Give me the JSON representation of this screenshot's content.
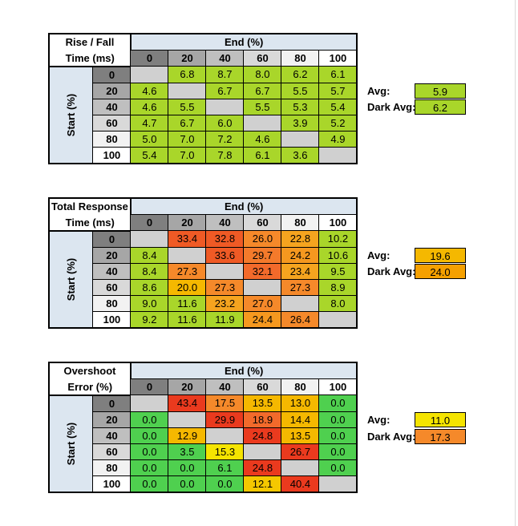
{
  "col_headers": [
    "0",
    "20",
    "40",
    "60",
    "80",
    "100"
  ],
  "row_headers": [
    "0",
    "20",
    "40",
    "60",
    "80",
    "100"
  ],
  "end_label": "End (%)",
  "start_label": "Start (%)",
  "avg_label": "Avg:",
  "dark_avg_label": "Dark Avg:",
  "colors": {
    "header_col_0": "#7f7f7f",
    "header_col_20": "#a6a6a6",
    "header_col_40": "#bfbfbf",
    "header_col_60": "#d9d9d9",
    "header_col_80": "#f2f2f2",
    "header_col_100": "#ffffff",
    "empty_cell": "#d0d0d0",
    "axis_header_bg": "#dce6f0",
    "green": "#4fd04f",
    "lime": "#a9d62a",
    "yellow": "#f5e400",
    "amber": "#f5b800",
    "orange": "#f58a28",
    "deep_orange": "#f26a2b",
    "red": "#ea3a1e"
  },
  "tables": [
    {
      "title_line1": "Rise / Fall",
      "title_line2": "Time (ms)",
      "avg": "5.9",
      "dark_avg": "6.2",
      "avg_color": "#a9d62a",
      "dark_avg_color": "#a9d62a",
      "rows": [
        [
          {
            "v": "",
            "c": "#d0d0d0"
          },
          {
            "v": "6.8",
            "c": "#a9d62a"
          },
          {
            "v": "8.7",
            "c": "#a9d62a"
          },
          {
            "v": "8.0",
            "c": "#a9d62a"
          },
          {
            "v": "6.2",
            "c": "#a9d62a"
          },
          {
            "v": "6.1",
            "c": "#a9d62a"
          }
        ],
        [
          {
            "v": "4.6",
            "c": "#a9d62a"
          },
          {
            "v": "",
            "c": "#d0d0d0"
          },
          {
            "v": "6.7",
            "c": "#a9d62a"
          },
          {
            "v": "6.7",
            "c": "#a9d62a"
          },
          {
            "v": "5.5",
            "c": "#a9d62a"
          },
          {
            "v": "5.7",
            "c": "#a9d62a"
          }
        ],
        [
          {
            "v": "4.6",
            "c": "#a9d62a"
          },
          {
            "v": "5.5",
            "c": "#a9d62a"
          },
          {
            "v": "",
            "c": "#d0d0d0"
          },
          {
            "v": "5.5",
            "c": "#a9d62a"
          },
          {
            "v": "5.3",
            "c": "#a9d62a"
          },
          {
            "v": "5.4",
            "c": "#a9d62a"
          }
        ],
        [
          {
            "v": "4.7",
            "c": "#a9d62a"
          },
          {
            "v": "6.7",
            "c": "#a9d62a"
          },
          {
            "v": "6.0",
            "c": "#a9d62a"
          },
          {
            "v": "",
            "c": "#d0d0d0"
          },
          {
            "v": "3.9",
            "c": "#a9d62a"
          },
          {
            "v": "5.2",
            "c": "#a9d62a"
          }
        ],
        [
          {
            "v": "5.0",
            "c": "#a9d62a"
          },
          {
            "v": "7.0",
            "c": "#a9d62a"
          },
          {
            "v": "7.2",
            "c": "#a9d62a"
          },
          {
            "v": "4.6",
            "c": "#a9d62a"
          },
          {
            "v": "",
            "c": "#d0d0d0"
          },
          {
            "v": "4.9",
            "c": "#a9d62a"
          }
        ],
        [
          {
            "v": "5.4",
            "c": "#a9d62a"
          },
          {
            "v": "7.0",
            "c": "#a9d62a"
          },
          {
            "v": "7.8",
            "c": "#a9d62a"
          },
          {
            "v": "6.1",
            "c": "#a9d62a"
          },
          {
            "v": "3.6",
            "c": "#a9d62a"
          },
          {
            "v": "",
            "c": "#d0d0d0"
          }
        ]
      ]
    },
    {
      "title_line1": "Total Response",
      "title_line2": "Time (ms)",
      "avg": "19.6",
      "dark_avg": "24.0",
      "avg_color": "#f5b800",
      "dark_avg_color": "#f5a000",
      "rows": [
        [
          {
            "v": "",
            "c": "#d0d0d0"
          },
          {
            "v": "33.4",
            "c": "#ef5a25"
          },
          {
            "v": "32.8",
            "c": "#ef5a25"
          },
          {
            "v": "26.0",
            "c": "#f5892a"
          },
          {
            "v": "22.8",
            "c": "#f5a41f"
          },
          {
            "v": "10.2",
            "c": "#a9d62a"
          }
        ],
        [
          {
            "v": "8.4",
            "c": "#a9d62a"
          },
          {
            "v": "",
            "c": "#d0d0d0"
          },
          {
            "v": "33.6",
            "c": "#ef5a25"
          },
          {
            "v": "29.7",
            "c": "#f47a2b"
          },
          {
            "v": "24.2",
            "c": "#f5981f"
          },
          {
            "v": "10.6",
            "c": "#a9d62a"
          }
        ],
        [
          {
            "v": "8.4",
            "c": "#a9d62a"
          },
          {
            "v": "27.3",
            "c": "#f5892a"
          },
          {
            "v": "",
            "c": "#d0d0d0"
          },
          {
            "v": "32.1",
            "c": "#f26a2b"
          },
          {
            "v": "23.4",
            "c": "#f5a41f"
          },
          {
            "v": "9.5",
            "c": "#a9d62a"
          }
        ],
        [
          {
            "v": "8.6",
            "c": "#a9d62a"
          },
          {
            "v": "20.0",
            "c": "#f5b800"
          },
          {
            "v": "27.3",
            "c": "#f5892a"
          },
          {
            "v": "",
            "c": "#d0d0d0"
          },
          {
            "v": "27.3",
            "c": "#f5892a"
          },
          {
            "v": "8.9",
            "c": "#a9d62a"
          }
        ],
        [
          {
            "v": "9.0",
            "c": "#a9d62a"
          },
          {
            "v": "11.6",
            "c": "#a9d62a"
          },
          {
            "v": "23.2",
            "c": "#f5a41f"
          },
          {
            "v": "27.0",
            "c": "#f5892a"
          },
          {
            "v": "",
            "c": "#d0d0d0"
          },
          {
            "v": "8.0",
            "c": "#a9d62a"
          }
        ],
        [
          {
            "v": "9.2",
            "c": "#a9d62a"
          },
          {
            "v": "11.6",
            "c": "#a9d62a"
          },
          {
            "v": "11.9",
            "c": "#a9d62a"
          },
          {
            "v": "24.4",
            "c": "#f5981f"
          },
          {
            "v": "26.4",
            "c": "#f5892a"
          },
          {
            "v": "",
            "c": "#d0d0d0"
          }
        ]
      ]
    },
    {
      "title_line1": "Overshoot",
      "title_line2": "Error (%)",
      "avg": "11.0",
      "dark_avg": "17.3",
      "avg_color": "#f5e400",
      "dark_avg_color": "#f5892a",
      "rows": [
        [
          {
            "v": "",
            "c": "#d0d0d0"
          },
          {
            "v": "43.4",
            "c": "#ea3a1e"
          },
          {
            "v": "17.5",
            "c": "#f5892a"
          },
          {
            "v": "13.5",
            "c": "#f5b800"
          },
          {
            "v": "13.0",
            "c": "#f5b800"
          },
          {
            "v": "0.0",
            "c": "#4fd04f"
          }
        ],
        [
          {
            "v": "0.0",
            "c": "#4fd04f"
          },
          {
            "v": "",
            "c": "#d0d0d0"
          },
          {
            "v": "29.9",
            "c": "#ea3a1e"
          },
          {
            "v": "18.9",
            "c": "#f26a2b"
          },
          {
            "v": "14.4",
            "c": "#f5b800"
          },
          {
            "v": "0.0",
            "c": "#4fd04f"
          }
        ],
        [
          {
            "v": "0.0",
            "c": "#4fd04f"
          },
          {
            "v": "12.9",
            "c": "#f5b800"
          },
          {
            "v": "",
            "c": "#d0d0d0"
          },
          {
            "v": "24.8",
            "c": "#ea3a1e"
          },
          {
            "v": "13.5",
            "c": "#f5b800"
          },
          {
            "v": "0.0",
            "c": "#4fd04f"
          }
        ],
        [
          {
            "v": "0.0",
            "c": "#4fd04f"
          },
          {
            "v": "3.5",
            "c": "#4fd04f"
          },
          {
            "v": "15.3",
            "c": "#f5e400"
          },
          {
            "v": "",
            "c": "#d0d0d0"
          },
          {
            "v": "26.7",
            "c": "#ea3a1e"
          },
          {
            "v": "0.0",
            "c": "#4fd04f"
          }
        ],
        [
          {
            "v": "0.0",
            "c": "#4fd04f"
          },
          {
            "v": "0.0",
            "c": "#4fd04f"
          },
          {
            "v": "6.1",
            "c": "#4fd04f"
          },
          {
            "v": "24.8",
            "c": "#ea3a1e"
          },
          {
            "v": "",
            "c": "#d0d0d0"
          },
          {
            "v": "0.0",
            "c": "#4fd04f"
          }
        ],
        [
          {
            "v": "0.0",
            "c": "#4fd04f"
          },
          {
            "v": "0.0",
            "c": "#4fd04f"
          },
          {
            "v": "0.0",
            "c": "#4fd04f"
          },
          {
            "v": "12.1",
            "c": "#f5c800"
          },
          {
            "v": "40.4",
            "c": "#ea3a1e"
          },
          {
            "v": "",
            "c": "#d0d0d0"
          }
        ]
      ]
    }
  ]
}
